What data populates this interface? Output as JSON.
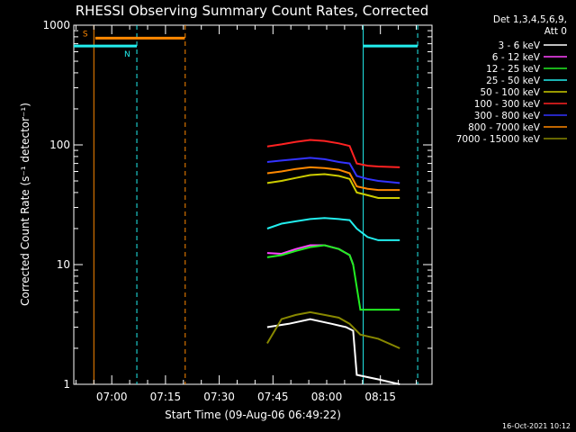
{
  "chart_data": {
    "type": "line",
    "title": "RHESSI Observing Summary Count Rates, Corrected",
    "xlabel": "Start Time (09-Aug-06 06:49:22)",
    "ylabel": "Corrected Count Rate (s⁻¹ detector⁻¹)",
    "yscale": "log",
    "ylim": [
      1,
      1000
    ],
    "xlim_minutes_from_start": [
      0,
      100
    ],
    "x_ticks": [
      {
        "label": "07:00",
        "min": 10.6
      },
      {
        "label": "07:15",
        "min": 25.6
      },
      {
        "label": "07:30",
        "min": 40.6
      },
      {
        "label": "07:45",
        "min": 55.6
      },
      {
        "label": "08:00",
        "min": 70.6
      },
      {
        "label": "08:15",
        "min": 85.6
      }
    ],
    "y_ticks": [
      {
        "label": "1",
        "value": 1
      },
      {
        "label": "10",
        "value": 10
      },
      {
        "label": "100",
        "value": 100
      },
      {
        "label": "1000",
        "value": 1000
      }
    ],
    "legend": {
      "header": [
        "Det 1,3,4,5,6,9,",
        "Att 0"
      ],
      "position": "right"
    },
    "series": [
      {
        "name": "3 - 6 keV",
        "color": "#ffffff",
        "x": [
          54,
          60,
          66,
          72,
          76,
          78,
          79,
          85,
          91
        ],
        "y": [
          3,
          3.2,
          3.5,
          3.2,
          3,
          2.8,
          1.2,
          1.1,
          1
        ]
      },
      {
        "name": "6 - 12 keV",
        "color": "#ff44ff",
        "x": [
          54,
          58,
          62,
          66,
          70,
          74,
          77,
          78
        ],
        "y": [
          12.5,
          12.3,
          13.5,
          14.5,
          14.5,
          13.5,
          12,
          10
        ]
      },
      {
        "name": "12 - 25 keV",
        "color": "#22ee22",
        "x": [
          54,
          58,
          62,
          66,
          70,
          74,
          77,
          78,
          80,
          85,
          91
        ],
        "y": [
          11.5,
          12,
          13,
          14,
          14.5,
          13.5,
          12,
          10,
          4.2,
          4.2,
          4.2
        ]
      },
      {
        "name": "25 - 50 keV",
        "color": "#22eeee",
        "x": [
          54,
          58,
          62,
          66,
          70,
          74,
          77,
          79,
          82,
          85,
          91
        ],
        "y": [
          20,
          22,
          23,
          24,
          24.5,
          24,
          23.5,
          20,
          17,
          16,
          16
        ]
      },
      {
        "name": "50 - 100 keV",
        "color": "#cccc00",
        "x": [
          54,
          58,
          62,
          66,
          70,
          74,
          77,
          79,
          82,
          85,
          91
        ],
        "y": [
          48,
          50,
          53,
          56,
          57,
          55,
          52,
          40,
          38,
          36,
          36
        ]
      },
      {
        "name": "100 - 300 keV",
        "color": "#ff2222",
        "x": [
          54,
          58,
          62,
          66,
          70,
          74,
          77,
          79,
          82,
          85,
          91
        ],
        "y": [
          97,
          101,
          106,
          110,
          108,
          103,
          98,
          70,
          67,
          66,
          65
        ]
      },
      {
        "name": "300 - 800 keV",
        "color": "#3333ff",
        "x": [
          54,
          58,
          62,
          66,
          70,
          74,
          77,
          79,
          82,
          85,
          91
        ],
        "y": [
          72,
          74,
          76,
          78,
          76,
          72,
          70,
          55,
          52,
          50,
          48
        ]
      },
      {
        "name": "800 - 7000 keV",
        "color": "#ff8800",
        "x": [
          54,
          58,
          62,
          66,
          70,
          74,
          77,
          79,
          82,
          85,
          91
        ],
        "y": [
          58,
          60,
          63,
          65,
          64,
          62,
          58,
          45,
          43,
          42,
          42
        ]
      },
      {
        "name": "7000 - 15000 keV",
        "color": "#888800",
        "x": [
          54,
          58,
          62,
          66,
          70,
          74,
          77,
          80,
          85,
          91
        ],
        "y": [
          2.2,
          3.5,
          3.8,
          4,
          3.8,
          3.6,
          3.2,
          2.6,
          2.4,
          2
        ]
      }
    ],
    "bands": [
      {
        "label": "S",
        "color": "#ff8800",
        "value": 780,
        "start_min": 6,
        "end_min": 31
      },
      {
        "label": "N",
        "color": "#22eeee",
        "value": 670,
        "start_min": 0,
        "end_min": 17.6
      },
      {
        "label": "",
        "color": "#22eeee",
        "value": 670,
        "start_min": 80.8,
        "end_min": 96
      }
    ],
    "markers": [
      {
        "color": "#ff8800",
        "style": "solid",
        "min": 5.6
      },
      {
        "color": "#22eeee",
        "style": "dashed",
        "min": 17.6
      },
      {
        "color": "#ff8800",
        "style": "dashed",
        "min": 31.1
      },
      {
        "color": "#22eeee",
        "style": "solid",
        "min": 80.8
      },
      {
        "color": "#22eeee",
        "style": "dashed",
        "min": 96
      }
    ]
  },
  "footer_timestamp": "16-Oct-2021 10:12"
}
